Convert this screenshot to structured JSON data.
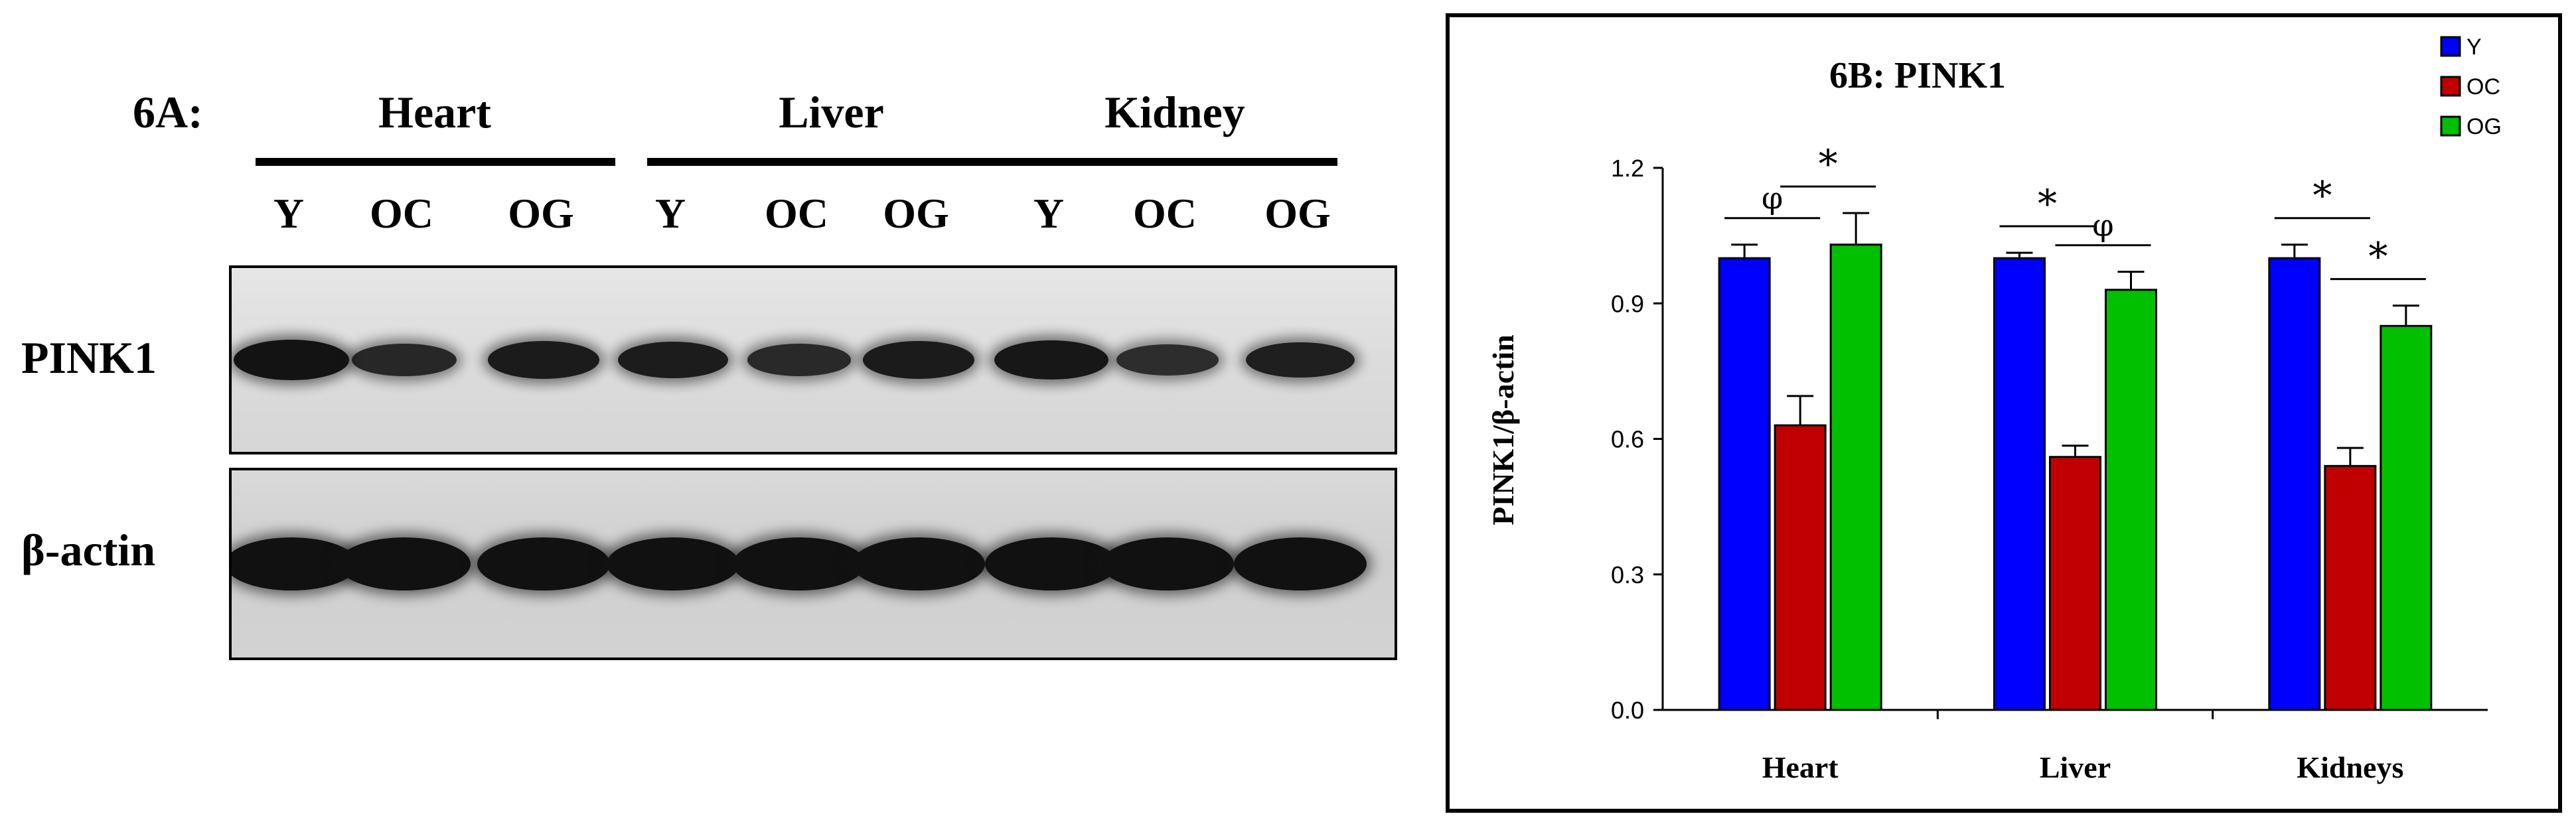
{
  "blot": {
    "label": "6A:",
    "tissues": [
      "Heart",
      "Liver",
      "Kidney"
    ],
    "lanes": [
      "Y",
      "OC",
      "OG",
      "Y",
      "OC",
      "OG",
      "Y",
      "OC",
      "OG"
    ],
    "rows": [
      "PINK1",
      "β-actin"
    ],
    "pink1_band_intensity": [
      0.95,
      0.55,
      0.8,
      0.75,
      0.5,
      0.8,
      0.9,
      0.45,
      0.7
    ],
    "actin_band_intensity": [
      1,
      1,
      1,
      1,
      1,
      1,
      1,
      1,
      1
    ]
  },
  "chart_data": {
    "type": "bar",
    "title": "6B: PINK1",
    "ylabel": "PINK1/β-actin",
    "xlabel": "",
    "categories": [
      "Heart",
      "Liver",
      "Kidneys"
    ],
    "ylim": [
      0,
      1.2
    ],
    "yticks": [
      "0.0",
      "0.3",
      "0.6",
      "0.9",
      "1.2"
    ],
    "grid": false,
    "legend_position": "top-right",
    "series": [
      {
        "name": "Y",
        "color": "#0000ff",
        "values": [
          1.0,
          1.0,
          1.0
        ],
        "errors": [
          0.03,
          0.012,
          0.03
        ]
      },
      {
        "name": "OC",
        "color": "#c00000",
        "values": [
          0.63,
          0.56,
          0.54
        ],
        "errors": [
          0.065,
          0.025,
          0.04
        ]
      },
      {
        "name": "OG",
        "color": "#00c000",
        "values": [
          1.03,
          0.93,
          0.85
        ],
        "errors": [
          0.07,
          0.04,
          0.045
        ]
      }
    ],
    "significance": [
      {
        "category": "Heart",
        "pair": "Y-OC",
        "symbol": "φ"
      },
      {
        "category": "Heart",
        "pair": "OC-OG",
        "symbol": "*"
      },
      {
        "category": "Liver",
        "pair": "Y-OC",
        "symbol": "*"
      },
      {
        "category": "Liver",
        "pair": "OC-OG",
        "symbol": "φ"
      },
      {
        "category": "Kidneys",
        "pair": "Y-OC",
        "symbol": "*"
      },
      {
        "category": "Kidneys",
        "pair": "OC-OG",
        "symbol": "*"
      }
    ]
  }
}
